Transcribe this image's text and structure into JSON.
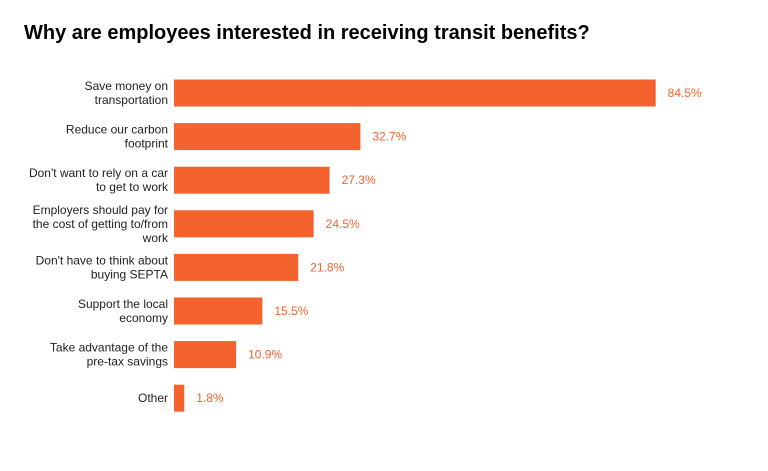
{
  "chart_data": {
    "type": "bar",
    "orientation": "horizontal",
    "title": "Why are employees interested in receiving transit benefits?",
    "categories": [
      [
        "Save money on",
        "transportation"
      ],
      [
        "Reduce our carbon",
        "footprint"
      ],
      [
        "Don't want to rely on a car",
        "to get to work"
      ],
      [
        "Employers should pay for",
        "the cost of getting to/from",
        "work"
      ],
      [
        "Don't have to think about",
        "buying SEPTA"
      ],
      [
        "Support the local",
        "economy"
      ],
      [
        "Take advantage of the",
        "pre-tax savings"
      ],
      [
        "Other"
      ]
    ],
    "values": [
      84.5,
      32.7,
      27.3,
      24.5,
      21.8,
      15.5,
      10.9,
      1.8
    ],
    "data_labels": [
      "84.5%",
      "32.7%",
      "27.3%",
      "24.5%",
      "21.8%",
      "15.5%",
      "10.9%",
      "1.8%"
    ],
    "xlim": [
      0,
      100
    ],
    "grid": false,
    "legend": "none",
    "bar_color": "#f4622d",
    "label_color": "#f4622d"
  }
}
